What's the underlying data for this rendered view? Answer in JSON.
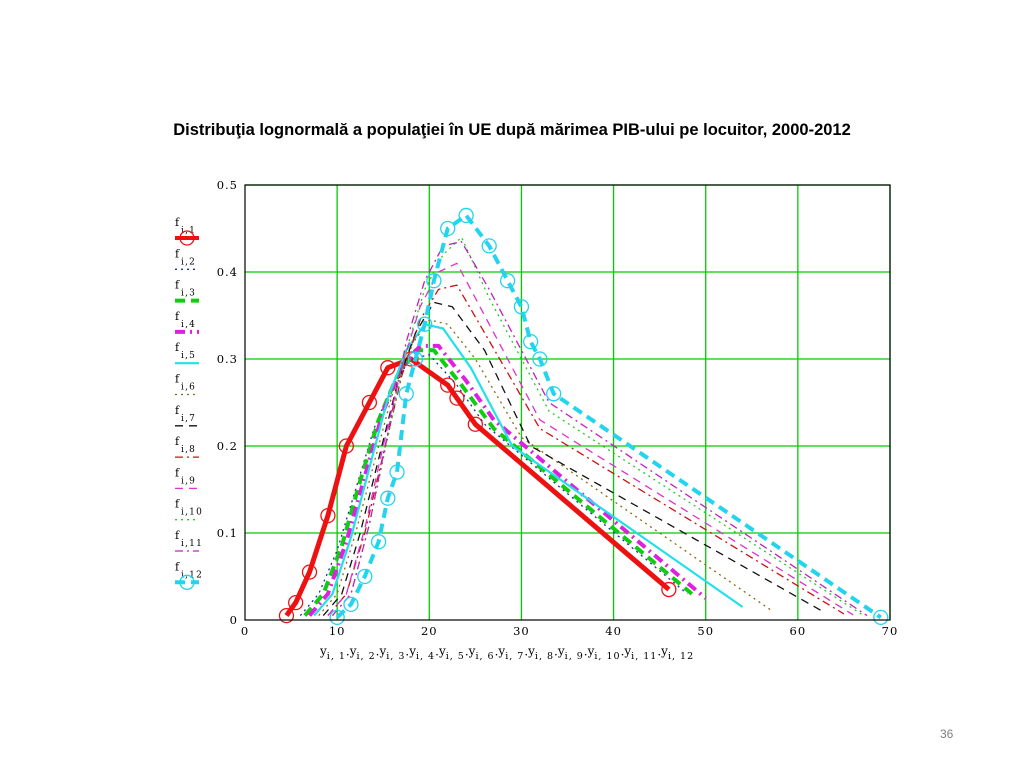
{
  "title": "Distribuţia lognormală a populaţiei în UE după mărimea PIB-ului pe locuitor, 2000-2012",
  "page_number": "36",
  "chart_data": {
    "type": "line",
    "xlabel": "y_{i,1}, y_{i,2}, y_{i,3}, y_{i,4}, y_{i,5}, y_{i,6}, y_{i,7}, y_{i,8}, y_{i,9}, y_{i,10}, y_{i,11}, y_{i,12}",
    "xlim": [
      0,
      70
    ],
    "ylim": [
      0,
      0.5
    ],
    "x_ticks": [
      "0",
      "10",
      "20",
      "30",
      "40",
      "50",
      "60",
      "70"
    ],
    "y_ticks": [
      "0",
      "0.1",
      "0.2",
      "0.3",
      "0.4",
      "0.5"
    ],
    "x_tick_values": [
      0,
      10,
      20,
      30,
      40,
      50,
      60,
      70
    ],
    "y_tick_values": [
      0,
      0.1,
      0.2,
      0.3,
      0.4,
      0.5
    ],
    "grid": true,
    "grid_color": "#00cc00",
    "legend_position": "left",
    "series": [
      {
        "name": "f_{i,1}",
        "color": "#ee1111",
        "style": "solid-thick-circles",
        "x": [
          4.5,
          5.5,
          7,
          9,
          11,
          13.5,
          15.5,
          18,
          22,
          23,
          25,
          46
        ],
        "y": [
          0.005,
          0.02,
          0.055,
          0.12,
          0.2,
          0.25,
          0.29,
          0.3,
          0.27,
          0.255,
          0.225,
          0.035
        ]
      },
      {
        "name": "f_{i,2}",
        "color": "#1a2ea8",
        "style": "dotted",
        "x": [
          6,
          8,
          10,
          12,
          14,
          16,
          18,
          20,
          23,
          26,
          48
        ],
        "y": [
          0.005,
          0.03,
          0.08,
          0.15,
          0.22,
          0.27,
          0.3,
          0.305,
          0.27,
          0.225,
          0.03
        ]
      },
      {
        "name": "f_{i,3}",
        "color": "#11cc11",
        "style": "dashed-thick",
        "x": [
          6.5,
          8.5,
          10.5,
          12.5,
          14.5,
          16.5,
          18.5,
          20.5,
          23.5,
          27,
          48.5
        ],
        "y": [
          0.005,
          0.03,
          0.085,
          0.16,
          0.23,
          0.28,
          0.31,
          0.31,
          0.27,
          0.22,
          0.03
        ]
      },
      {
        "name": "f_{i,4}",
        "color": "#e020e0",
        "style": "dash-dot-thick",
        "x": [
          7,
          9,
          11,
          13,
          15,
          17,
          19,
          21,
          24,
          27,
          50
        ],
        "y": [
          0.005,
          0.03,
          0.09,
          0.165,
          0.24,
          0.29,
          0.315,
          0.315,
          0.275,
          0.23,
          0.025
        ]
      },
      {
        "name": "f_{i,5}",
        "color": "#22e0e8",
        "style": "solid",
        "x": [
          7.5,
          9.5,
          11.5,
          13.5,
          15.5,
          17.5,
          19.5,
          21.5,
          24.5,
          29,
          54
        ],
        "y": [
          0.005,
          0.03,
          0.095,
          0.175,
          0.255,
          0.31,
          0.34,
          0.335,
          0.29,
          0.2,
          0.015
        ]
      },
      {
        "name": "f_{i,6}",
        "color": "#8a6a10",
        "style": "dotted",
        "x": [
          8,
          10,
          12,
          14,
          16,
          18,
          20,
          22,
          25,
          30,
          57
        ],
        "y": [
          0.005,
          0.03,
          0.1,
          0.18,
          0.26,
          0.315,
          0.345,
          0.34,
          0.3,
          0.21,
          0.012
        ]
      },
      {
        "name": "f_{i,7}",
        "color": "#111111",
        "style": "dashed",
        "x": [
          8.5,
          10.5,
          12.5,
          14.5,
          16.5,
          18.5,
          20.5,
          22.5,
          26,
          31,
          63
        ],
        "y": [
          0.005,
          0.03,
          0.1,
          0.185,
          0.27,
          0.33,
          0.365,
          0.36,
          0.31,
          0.2,
          0.008
        ]
      },
      {
        "name": "f_{i,8}",
        "color": "#cc1111",
        "style": "dash-dot",
        "x": [
          9,
          11,
          13,
          15,
          17,
          19,
          21,
          23,
          26,
          32,
          65
        ],
        "y": [
          0.005,
          0.03,
          0.1,
          0.19,
          0.28,
          0.345,
          0.38,
          0.385,
          0.33,
          0.22,
          0.007
        ]
      },
      {
        "name": "f_{i,9}",
        "color": "#e030d0",
        "style": "dashed",
        "x": [
          9,
          11,
          13,
          15,
          17,
          19,
          21,
          23,
          26,
          32,
          66
        ],
        "y": [
          0.005,
          0.03,
          0.105,
          0.2,
          0.29,
          0.36,
          0.4,
          0.41,
          0.35,
          0.23,
          0.006
        ]
      },
      {
        "name": "f_{i,10}",
        "color": "#22cc22",
        "style": "dotted",
        "x": [
          9.5,
          11.5,
          13.5,
          15.5,
          17.5,
          19.5,
          21.5,
          23.5,
          26.5,
          33,
          67
        ],
        "y": [
          0.005,
          0.03,
          0.11,
          0.21,
          0.31,
          0.38,
          0.42,
          0.44,
          0.37,
          0.24,
          0.006
        ]
      },
      {
        "name": "f_{i,11}",
        "color": "#c020c0",
        "style": "dash-dot",
        "x": [
          9.5,
          11.5,
          13.5,
          15.5,
          17.5,
          19.5,
          21.5,
          23.5,
          26.5,
          33,
          67.5
        ],
        "y": [
          0.005,
          0.03,
          0.11,
          0.215,
          0.32,
          0.39,
          0.43,
          0.435,
          0.38,
          0.25,
          0.005
        ]
      },
      {
        "name": "f_{i,12}",
        "color": "#22d4ee",
        "style": "dashed-thick-circles",
        "x": [
          10,
          11.5,
          13,
          14.5,
          15.5,
          16.5,
          17.5,
          18.5,
          19.5,
          20.5,
          22,
          24,
          26.5,
          28.5,
          30,
          31,
          32,
          33.5,
          69
        ],
        "y": [
          0.003,
          0.018,
          0.05,
          0.09,
          0.14,
          0.17,
          0.26,
          0.3,
          0.34,
          0.39,
          0.45,
          0.465,
          0.43,
          0.39,
          0.36,
          0.32,
          0.3,
          0.26,
          0.003
        ]
      }
    ]
  }
}
